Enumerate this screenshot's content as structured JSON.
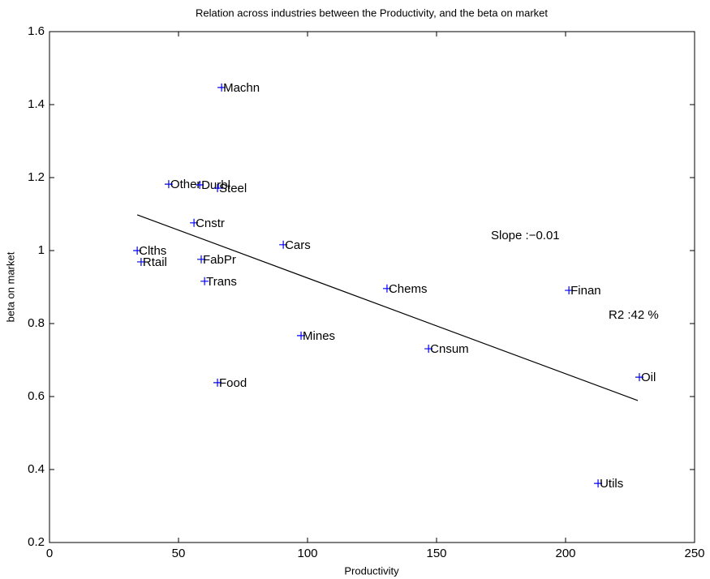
{
  "chart_data": {
    "type": "scatter",
    "title": "Relation across industries between the Productivity, and the beta on market",
    "x_label": "Productivity",
    "y_label": "beta on market",
    "series": [
      {
        "color": "#0000ff",
        "marker": "+",
        "x": [
          66.7,
          46.2,
          58.2,
          65.1,
          56.0,
          34.0,
          35.5,
          58.8,
          60.1,
          90.6,
          130.8,
          97.5,
          146.9,
          65.1,
          201.3,
          228.6,
          212.6
        ],
        "values": [
          1.447,
          1.182,
          1.18,
          1.171,
          1.076,
          1.0,
          0.969,
          0.976,
          0.916,
          1.016,
          0.896,
          0.767,
          0.731,
          0.638,
          0.891,
          0.653,
          0.362
        ],
        "labels": [
          "Machn",
          "Other",
          "Durbl",
          "Steel",
          "Cnstr",
          "Clths",
          "Rtail",
          "FabPr",
          "Trans",
          "Cars",
          "Chems",
          "Mines",
          "Cnsum",
          "Food",
          "Finan",
          "Oil",
          "Utils"
        ]
      }
    ],
    "fit_line": {
      "color": "#000000",
      "x": [
        34,
        228
      ],
      "values": [
        1.098,
        0.589
      ]
    },
    "annotations": [
      "Slope :−0.01",
      "R2 :42 %"
    ],
    "xlim": [
      0,
      250
    ],
    "xticks": [
      0,
      50,
      100,
      150,
      200,
      250
    ],
    "ylim": [
      0.2,
      1.6
    ],
    "yticks": [
      0.2,
      0.4,
      0.6,
      0.8,
      1,
      1.2,
      1.4,
      1.6
    ],
    "grid": false
  }
}
